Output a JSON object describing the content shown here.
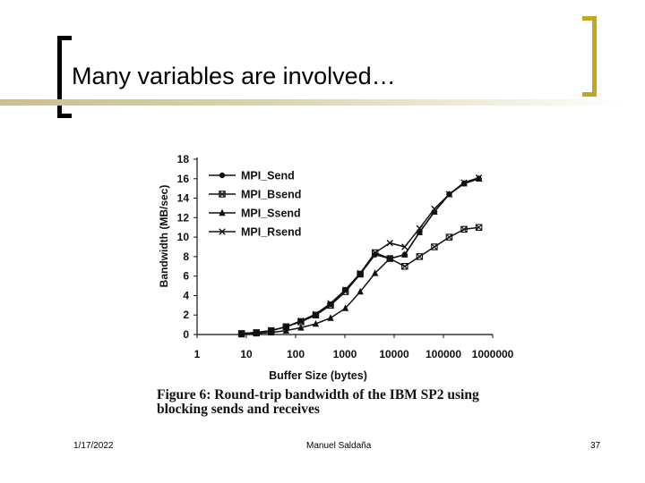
{
  "slide": {
    "title": "Many variables are involved…",
    "footer": {
      "date": "1/17/2022",
      "author": "Manuel Saldaña",
      "page": "37"
    },
    "colors": {
      "title_underline": "#c9c08a",
      "right_bracket": "#c8a51e",
      "left_bracket": "#000000"
    }
  },
  "chart_data": {
    "type": "line",
    "ylabel": "Bandwidth (MB/sec)",
    "xlabel": "Buffer Size (bytes)",
    "caption": "Figure 6: Round-trip bandwidth of the IBM SP2 using blocking sends and receives",
    "x_scale": "log",
    "xlim": [
      1,
      1000000
    ],
    "ylim": [
      0,
      18
    ],
    "x_ticks": [
      "1",
      "10",
      "100",
      "1000",
      "10000",
      "100000",
      "1000000"
    ],
    "y_ticks": [
      "0",
      "2",
      "4",
      "6",
      "8",
      "10",
      "12",
      "14",
      "16",
      "18"
    ],
    "legend_position": "top-left",
    "series": [
      {
        "name": "MPI_Send",
        "marker": "circle",
        "x": [
          8,
          16,
          32,
          64,
          128,
          256,
          512,
          1024,
          2048,
          4096,
          8192,
          16384,
          32768,
          65536,
          131072,
          262144,
          524288
        ],
        "y": [
          0.1,
          0.2,
          0.4,
          0.8,
          1.4,
          2.0,
          3.1,
          4.6,
          6.2,
          8.2,
          7.8,
          8.2,
          10.5,
          12.6,
          14.4,
          15.5,
          16.0
        ]
      },
      {
        "name": "MPI_Bsend",
        "marker": "square-x",
        "x": [
          8,
          16,
          32,
          64,
          128,
          256,
          512,
          1024,
          2048,
          4096,
          8192,
          16384,
          32768,
          65536,
          131072,
          262144,
          524288
        ],
        "y": [
          0.1,
          0.2,
          0.4,
          0.8,
          1.3,
          2.0,
          3.0,
          4.4,
          6.2,
          8.4,
          7.8,
          7.0,
          8.0,
          9.0,
          10.0,
          10.8,
          11.0
        ]
      },
      {
        "name": "MPI_Ssend",
        "marker": "triangle",
        "x": [
          8,
          16,
          32,
          64,
          128,
          256,
          512,
          1024,
          2048,
          4096,
          8192,
          16384,
          32768,
          65536,
          131072,
          262144,
          524288
        ],
        "y": [
          0.0,
          0.1,
          0.2,
          0.4,
          0.7,
          1.1,
          1.7,
          2.7,
          4.4,
          6.3,
          7.8,
          8.2,
          10.5,
          12.6,
          14.4,
          15.5,
          16.0
        ]
      },
      {
        "name": "MPI_Rsend",
        "marker": "x",
        "x": [
          8,
          16,
          32,
          64,
          128,
          256,
          512,
          1024,
          2048,
          4096,
          8192,
          16384,
          32768,
          65536,
          131072,
          262144,
          524288
        ],
        "y": [
          0.1,
          0.2,
          0.4,
          0.8,
          1.4,
          2.1,
          3.2,
          4.6,
          6.3,
          8.4,
          9.4,
          9.0,
          10.9,
          12.9,
          14.4,
          15.6,
          16.1
        ]
      }
    ]
  }
}
